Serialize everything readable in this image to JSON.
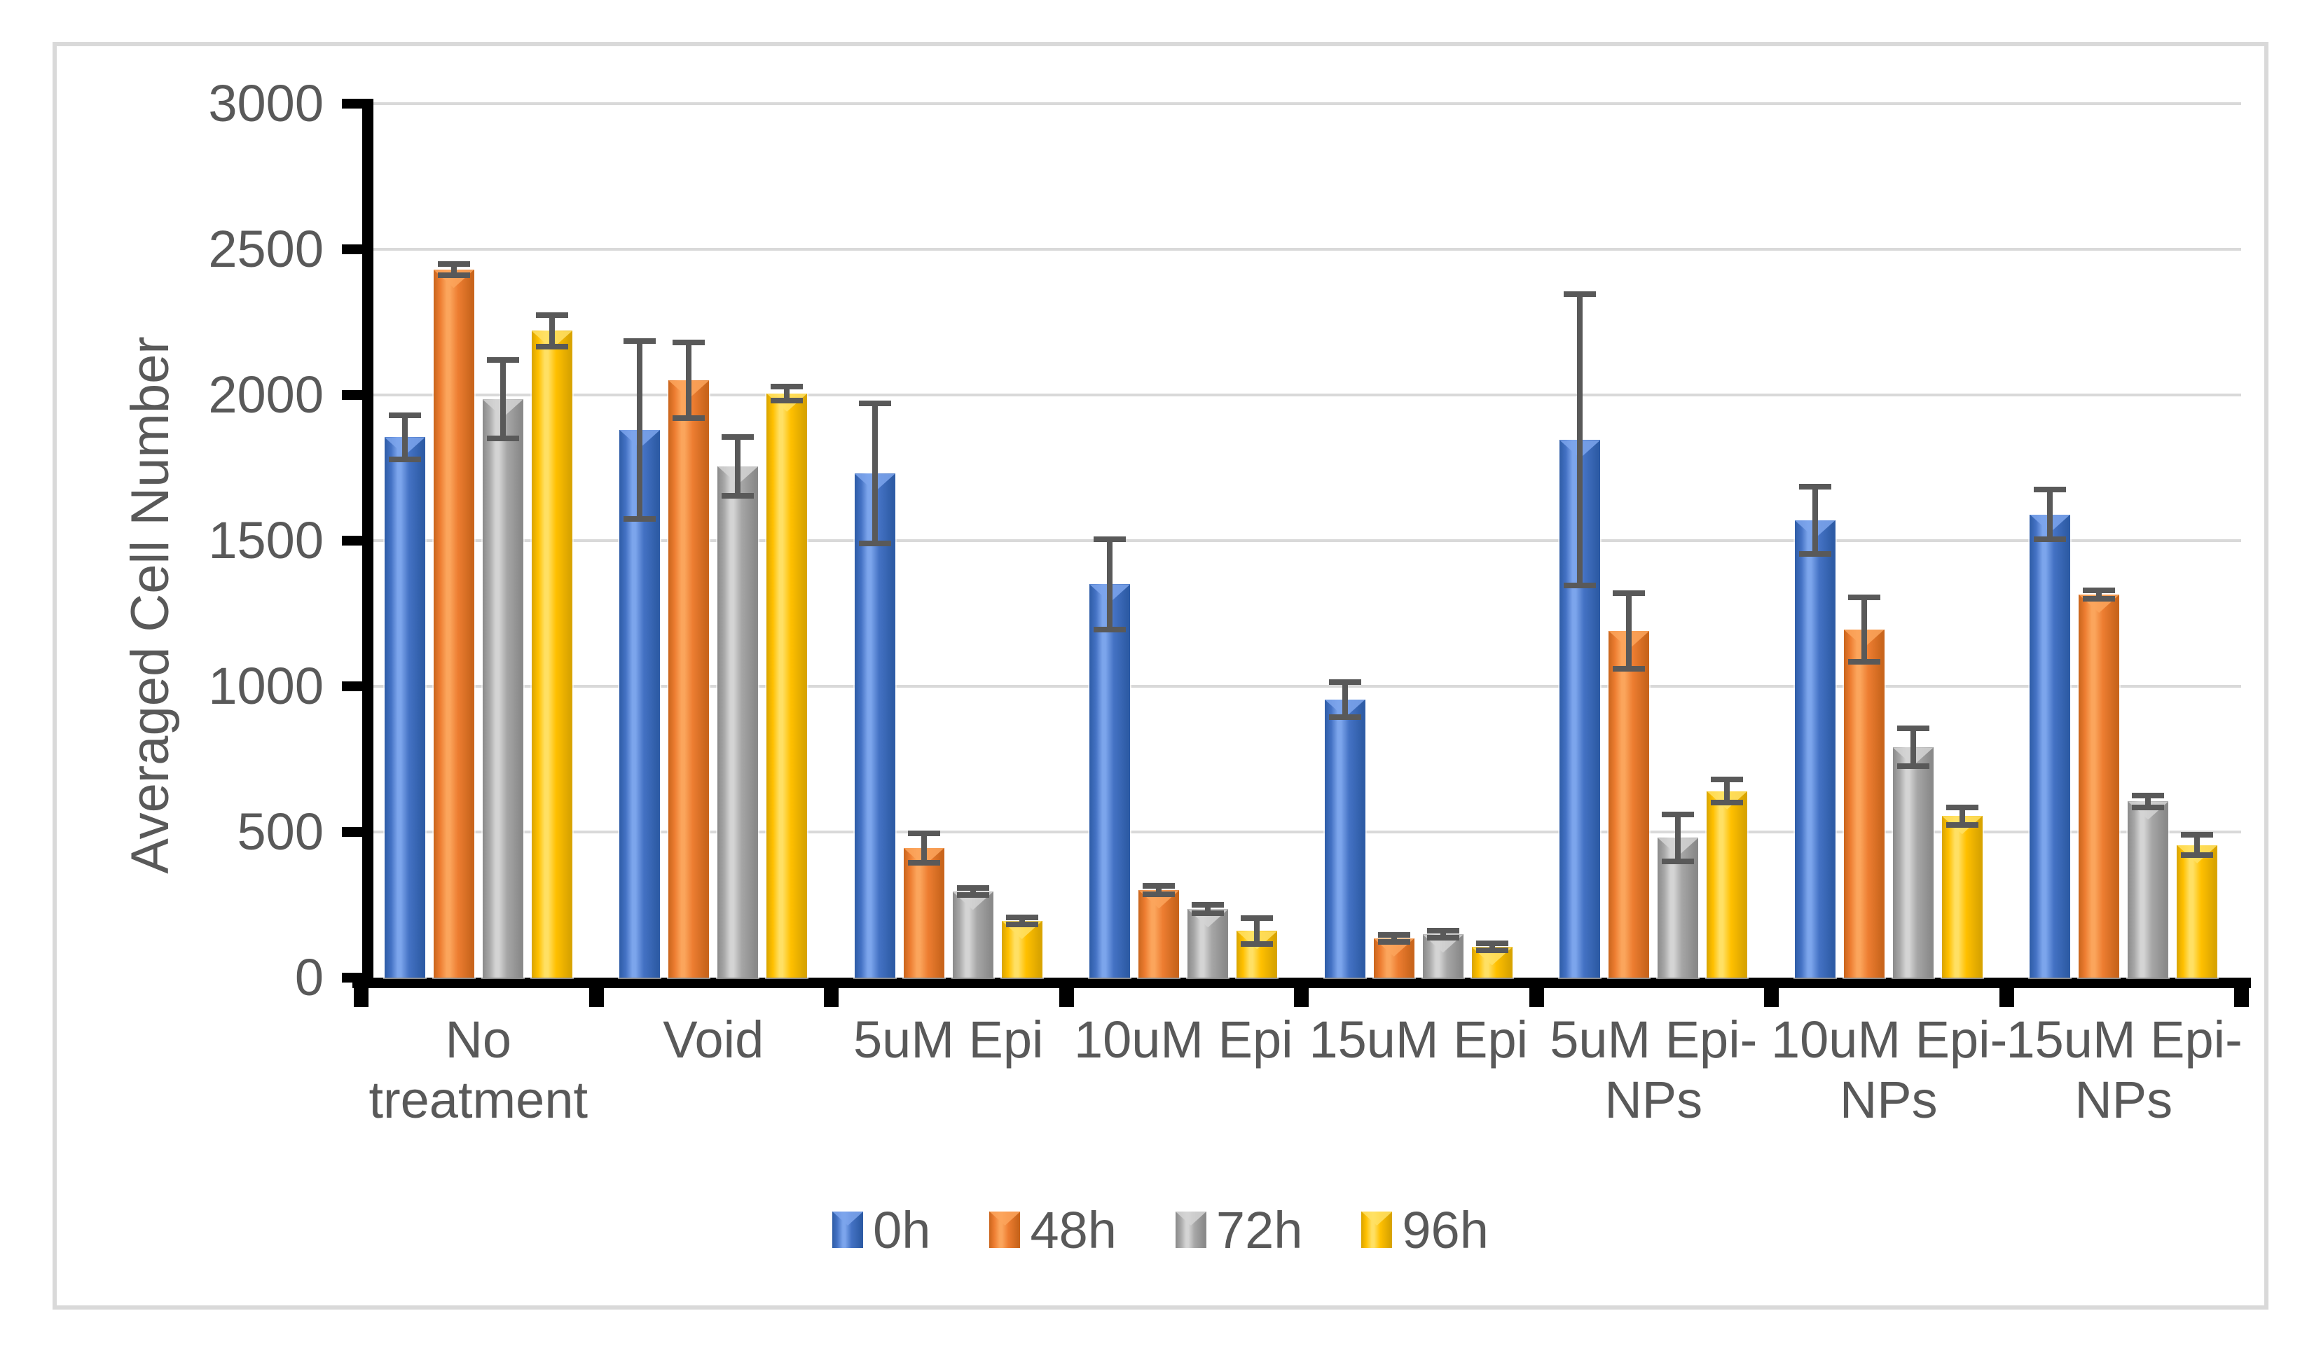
{
  "chart_data": {
    "type": "bar",
    "title": "",
    "xlabel": "",
    "ylabel": "Averaged Cell Number",
    "ylim": [
      0,
      3000
    ],
    "yticks": [
      0,
      500,
      1000,
      1500,
      2000,
      2500,
      3000
    ],
    "grid": true,
    "legend_position": "bottom",
    "categories": [
      "No treatment",
      "Void",
      "5uM Epi",
      "10uM Epi",
      "15uM Epi",
      "5uM Epi-NPs",
      "10uM Epi-NPs",
      "15uM Epi-NPs"
    ],
    "category_label_lines": [
      [
        "No",
        "treatment"
      ],
      [
        "Void"
      ],
      [
        "5uM Epi"
      ],
      [
        "10uM Epi"
      ],
      [
        "15uM Epi"
      ],
      [
        "5uM Epi-",
        "NPs"
      ],
      [
        "10uM Epi-",
        "NPs"
      ],
      [
        "15uM Epi-",
        "NPs"
      ]
    ],
    "series": [
      {
        "name": "0h",
        "color": "#4472C4",
        "color_dark": "#2E5CA6",
        "color_light": "#7CA5EC",
        "values": [
          1855,
          1880,
          1730,
          1350,
          955,
          1845,
          1570,
          1590
        ],
        "errors": [
          75,
          305,
          240,
          155,
          60,
          500,
          115,
          85
        ]
      },
      {
        "name": "48h",
        "color": "#ED7D31",
        "color_dark": "#C9651C",
        "color_light": "#FBA55C",
        "values": [
          2430,
          2050,
          445,
          300,
          135,
          1190,
          1195,
          1315
        ],
        "errors": [
          20,
          130,
          50,
          15,
          12,
          130,
          110,
          15
        ]
      },
      {
        "name": "72h",
        "color": "#A6A6A6",
        "color_dark": "#8A8A8A",
        "color_light": "#D4D4D4",
        "values": [
          1985,
          1755,
          295,
          235,
          148,
          480,
          790,
          605
        ],
        "errors": [
          135,
          100,
          12,
          15,
          12,
          80,
          65,
          20
        ]
      },
      {
        "name": "96h",
        "color": "#FFC000",
        "color_dark": "#D9A400",
        "color_light": "#FFE064",
        "values": [
          2220,
          2005,
          195,
          160,
          105,
          640,
          555,
          455
        ],
        "errors": [
          55,
          25,
          12,
          45,
          12,
          40,
          30,
          35
        ]
      }
    ],
    "error_bar_color": "#595959",
    "axis_color": "#000000",
    "gridline_color": "#D9D9D9",
    "text_color": "#595959",
    "frame_color": "#D9D9D9"
  }
}
